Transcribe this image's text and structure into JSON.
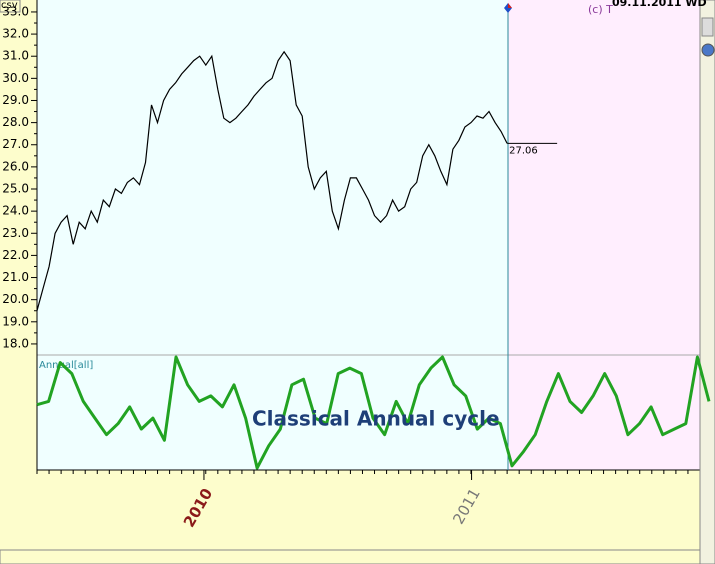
{
  "chart_data": {
    "type": "line",
    "file_label": "csv",
    "copyright": "(c) T",
    "date_label": "09.11.2011 WD",
    "last_value_label": "27.06",
    "cycle_title": "Classical Annual cycle",
    "cycle_label": "Annual[all]",
    "xlim": [
      0,
      110
    ],
    "xticks": [
      {
        "value": 27.7,
        "label": "2010"
      },
      {
        "value": 72.1,
        "label": "2011"
      }
    ],
    "ylim": [
      17.5,
      33.54
    ],
    "yticks": [
      {
        "value": 18,
        "label": "18.0"
      },
      {
        "value": 19,
        "label": "19.0"
      },
      {
        "value": 20,
        "label": "20.0"
      },
      {
        "value": 21,
        "label": "21.0"
      },
      {
        "value": 22,
        "label": "22.0"
      },
      {
        "value": 23,
        "label": "23.0"
      },
      {
        "value": 24,
        "label": "24.0"
      },
      {
        "value": 25,
        "label": "25.0"
      },
      {
        "value": 26,
        "label": "26.0"
      },
      {
        "value": 27,
        "label": "27.0"
      },
      {
        "value": 28,
        "label": "28.0"
      },
      {
        "value": 29,
        "label": "29.0"
      },
      {
        "value": 30,
        "label": "30.0"
      },
      {
        "value": 31,
        "label": "31.0"
      },
      {
        "value": 32,
        "label": "32.0"
      },
      {
        "value": 33,
        "label": "33.0"
      }
    ],
    "price": {
      "color": "#000000",
      "values": [
        19.5,
        20.5,
        21.5,
        23,
        23.5,
        23.8,
        22.5,
        23.5,
        23.2,
        24,
        23.5,
        24.5,
        24.2,
        25,
        24.8,
        25.3,
        25.5,
        25.2,
        26.2,
        28.8,
        28,
        29,
        29.5,
        29.8,
        30.2,
        30.5,
        30.8,
        31,
        30.6,
        31,
        29.5,
        28.2,
        28,
        28.2,
        28.5,
        28.8,
        29.2,
        29.5,
        29.8,
        30,
        30.8,
        31.2,
        30.8,
        28.8,
        28.3,
        26,
        25,
        25.5,
        25.8,
        24,
        23.2,
        24.5,
        25.5,
        25.5,
        25,
        24.5,
        23.8,
        23.5,
        23.8,
        24.5,
        24,
        24.2,
        25,
        25.3,
        26.5,
        27,
        26.5,
        25.8,
        25.2,
        26.8,
        27.2,
        27.8,
        28,
        28.3,
        28.2,
        28.5,
        28,
        27.6,
        27.06
      ]
    },
    "cycle": {
      "color": "#22a322",
      "ylim": [
        0,
        100
      ],
      "values": [
        57,
        60,
        95,
        85,
        60,
        45,
        30,
        40,
        55,
        35,
        45,
        25,
        100,
        75,
        60,
        65,
        55,
        75,
        45,
        0,
        20,
        35,
        75,
        80,
        45,
        40,
        85,
        90,
        85,
        45,
        30,
        60,
        40,
        75,
        90,
        100,
        75,
        65,
        35,
        45,
        40,
        2,
        15,
        30,
        60,
        85,
        60,
        50,
        65,
        85,
        65,
        30,
        40,
        55,
        30,
        35,
        40,
        100,
        60
      ]
    }
  }
}
